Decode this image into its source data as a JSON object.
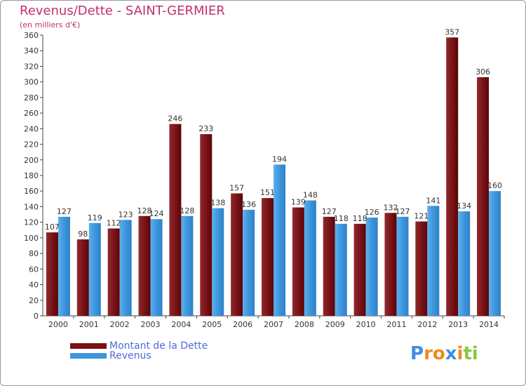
{
  "title": "Revenus/Dette - SAINT-GERMIER",
  "subtitle": "(en milliers d'€)",
  "colors": {
    "dette": "#7a0f14",
    "revenus": "#3d96dc",
    "title": "#c0306e",
    "legend_text": "#4f6ad8"
  },
  "legend": {
    "dette_label": "Montant de la Dette",
    "revenus_label": "Revenus"
  },
  "logo": {
    "text": "Proxiti",
    "letters": [
      "P",
      "r",
      "o",
      "x",
      "i",
      "t",
      "i"
    ],
    "letter_colors": [
      "#3d8ee0",
      "#f08a1c",
      "#f08a1c",
      "#3d8ee0",
      "#f08a1c",
      "#8cc63f",
      "#8cc63f"
    ]
  },
  "chart_data": {
    "type": "bar",
    "title": "Revenus/Dette - SAINT-GERMIER",
    "ylabel": "(en milliers d'€)",
    "xlabel": "",
    "ylim": [
      0,
      360
    ],
    "ytick_step": 20,
    "grid": false,
    "legend_position": "bottom-left",
    "categories": [
      "2000",
      "2001",
      "2002",
      "2003",
      "2004",
      "2005",
      "2006",
      "2007",
      "2008",
      "2009",
      "2010",
      "2011",
      "2012",
      "2013",
      "2014"
    ],
    "series": [
      {
        "name": "Montant de la Dette",
        "values": [
          107,
          98,
          112,
          128,
          246,
          233,
          157,
          151,
          139,
          127,
          118,
          132,
          121,
          357,
          306
        ]
      },
      {
        "name": "Revenus",
        "values": [
          127,
          119,
          123,
          124,
          128,
          138,
          136,
          194,
          148,
          118,
          126,
          127,
          141,
          134,
          160
        ]
      }
    ]
  }
}
